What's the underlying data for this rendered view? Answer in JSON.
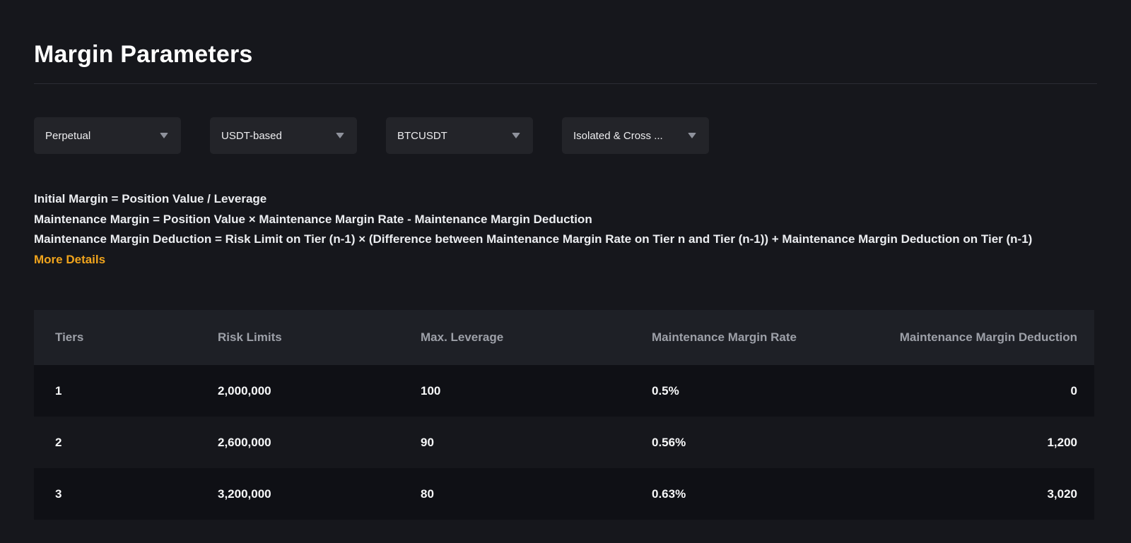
{
  "page": {
    "title": "Margin Parameters"
  },
  "filters": [
    {
      "label": "Perpetual"
    },
    {
      "label": "USDT-based"
    },
    {
      "label": "BTCUSDT"
    },
    {
      "label": "Isolated & Cross ..."
    }
  ],
  "formulas": {
    "lines": [
      "Initial Margin = Position Value / Leverage",
      "Maintenance Margin = Position Value × Maintenance Margin Rate - Maintenance Margin Deduction",
      "Maintenance Margin Deduction = Risk Limit on Tier (n-1) × (Difference between Maintenance Margin Rate on Tier n and Tier (n-1)) + Maintenance Margin Deduction on Tier (n-1)"
    ],
    "more_details_label": "More Details"
  },
  "table": {
    "headers": [
      "Tiers",
      "Risk Limits",
      "Max. Leverage",
      "Maintenance Margin Rate",
      "Maintenance Margin Deduction"
    ],
    "rows": [
      [
        "1",
        "2,000,000",
        "100",
        "0.5%",
        "0"
      ],
      [
        "2",
        "2,600,000",
        "90",
        "0.56%",
        "1,200"
      ],
      [
        "3",
        "3,200,000",
        "80",
        "0.63%",
        "3,020"
      ]
    ]
  },
  "colors": {
    "page_bg": "#16171c",
    "accent_orange": "#f0a41c",
    "table_header_bg": "#1e2026",
    "row_dark_bg": "#0f1015",
    "dropdown_bg": "#232429",
    "divider": "#2b2d34"
  }
}
